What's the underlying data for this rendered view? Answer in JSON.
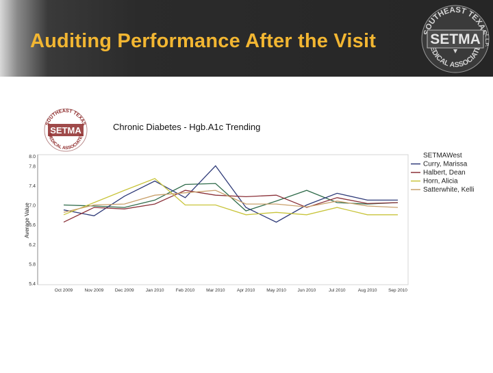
{
  "slide": {
    "title": "Auditing Performance After the Visit"
  },
  "logo": {
    "ring_top": "SOUTHEAST TEXAS",
    "ring_bottom": "MEDICAL ASSOCIATES",
    "side": "L.L.P.",
    "wordmark": "SETMA"
  },
  "colors": {
    "title": "#f2b632",
    "logo_red": "#8e2a2a"
  },
  "chart_data": {
    "type": "line",
    "title": "Chronic Diabetes - Hgb.A1c Trending",
    "xlabel": "",
    "ylabel": "Average Value",
    "categories": [
      "Oct 2009",
      "Nov 2009",
      "Dec 2009",
      "Jan 2010",
      "Feb 2010",
      "Mar 2010",
      "Apr 2010",
      "May 2010",
      "Jun 2010",
      "Jul 2010",
      "Aug 2010",
      "Sep 2010"
    ],
    "y_ticks": [
      "5.4",
      "5.8",
      "6.2",
      "6.6",
      "7.0",
      "7.4",
      "7.8",
      "8.0"
    ],
    "ylim": [
      5.4,
      8.0
    ],
    "grid": false,
    "legend_position": "right",
    "series": [
      {
        "name": "SETMAWest",
        "color": "#2f6b4a",
        "values": [
          7.0,
          6.98,
          6.95,
          7.1,
          7.42,
          7.44,
          6.88,
          7.08,
          7.3,
          7.05,
          7.02,
          7.05
        ]
      },
      {
        "name": "Curry, Marissa",
        "color": "#2e3a78",
        "values": [
          6.9,
          6.78,
          7.18,
          7.49,
          7.15,
          7.8,
          6.95,
          6.65,
          7.0,
          7.24,
          7.1,
          7.1
        ]
      },
      {
        "name": "Halbert, Dean",
        "color": "#8a3038",
        "values": [
          6.65,
          6.95,
          6.92,
          7.02,
          7.3,
          7.2,
          7.17,
          7.2,
          6.95,
          7.15,
          7.03,
          7.05
        ]
      },
      {
        "name": "Horn, Alicia",
        "color": "#c8c43a",
        "values": [
          6.8,
          7.05,
          7.3,
          7.54,
          7.0,
          7.0,
          6.8,
          6.85,
          6.8,
          6.95,
          6.8,
          6.8
        ]
      },
      {
        "name": "Satterwhite, Kelli",
        "color": "#c9a06a",
        "values": [
          6.85,
          7.0,
          7.02,
          7.2,
          7.25,
          7.3,
          7.02,
          7.02,
          6.96,
          7.08,
          6.98,
          6.95
        ]
      }
    ]
  }
}
